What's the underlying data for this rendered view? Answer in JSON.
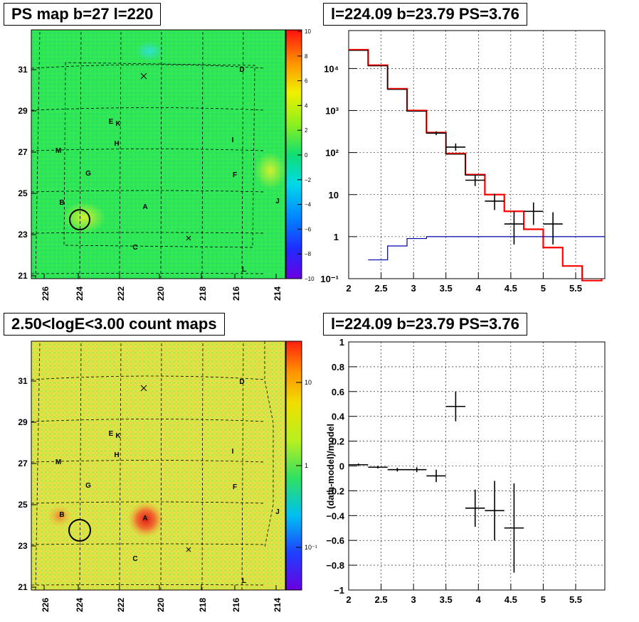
{
  "panels": {
    "tl_title": "PS map b=27 l=220",
    "tr_title": "l=224.09 b=23.79 PS=3.76",
    "bl_title": "2.50<logE<3.00 count maps",
    "br_title": "l=224.09 b=23.79 PS=3.76"
  },
  "maps": {
    "x_ticks": [
      "226",
      "224",
      "222",
      "220",
      "218",
      "216",
      "214"
    ],
    "y_ticks": [
      "31",
      "29",
      "27",
      "25",
      "23",
      "21"
    ],
    "sources": [
      {
        "label": "D"
      },
      {
        "label": "E"
      },
      {
        "label": "K"
      },
      {
        "label": "H"
      },
      {
        "label": "I"
      },
      {
        "label": "M"
      },
      {
        "label": "G"
      },
      {
        "label": "F"
      },
      {
        "label": "B"
      },
      {
        "label": "A"
      },
      {
        "label": "J"
      },
      {
        "label": "C"
      },
      {
        "label": "L"
      }
    ],
    "ps_colorbar_ticks": [
      "10",
      "8",
      "6",
      "4",
      "2",
      "0",
      "−2",
      "−4",
      "−6",
      "−8",
      "−10"
    ],
    "count_colorbar_ticks": [
      "10",
      "1",
      "10⁻¹"
    ],
    "colors": {
      "ps_bg": "#2fe65a",
      "count_bg": "#d8e84a",
      "hotspot": "#e8401e"
    }
  },
  "chart_data": [
    {
      "type": "line",
      "title": "l=224.09 b=23.79 PS=3.76",
      "xlim": [
        2,
        5.95
      ],
      "ylim": [
        0.1,
        80000
      ],
      "yscale": "log",
      "x_ticks": [
        "2",
        "2.5",
        "3",
        "3.5",
        "4",
        "4.5",
        "5",
        "5.5"
      ],
      "y_ticks": [
        "10⁻¹",
        "1",
        "10",
        "10²",
        "10³",
        "10⁴"
      ],
      "grid": true,
      "series": [
        {
          "color": "#ff0000",
          "kind": "step",
          "edges": [
            2.0,
            2.3,
            2.6,
            2.9,
            3.2,
            3.5,
            3.8,
            4.1,
            4.4,
            4.7,
            5.0,
            5.3,
            5.6,
            5.9
          ],
          "values": [
            28000,
            12000,
            3300,
            1000,
            300,
            95,
            30,
            10,
            4,
            1.5,
            0.55,
            0.2,
            0.09
          ]
        },
        {
          "color": "#0000aa",
          "kind": "step",
          "edges": [
            2.3,
            2.6,
            2.9,
            3.2,
            3.5,
            5.95
          ],
          "values": [
            0.28,
            0.6,
            0.9,
            1.0,
            1.0
          ]
        },
        {
          "color": "#000000",
          "kind": "points",
          "x": [
            3.35,
            3.65,
            3.95,
            4.25,
            4.55,
            4.85,
            5.15
          ],
          "xerr": [
            0.15,
            0.15,
            0.15,
            0.15,
            0.15,
            0.15,
            0.15
          ],
          "y": [
            290,
            135,
            22,
            7,
            2,
            4,
            2
          ],
          "ylo": [
            260,
            110,
            16,
            4.3,
            0.65,
            1.9,
            0.65
          ],
          "yhi": [
            320,
            165,
            29,
            10.5,
            4,
            6.5,
            3.8
          ]
        }
      ]
    },
    {
      "type": "scatter",
      "title": "l=224.09 b=23.79 PS=3.76",
      "ylabel": "(data-model)/model",
      "xlim": [
        2,
        5.95
      ],
      "ylim": [
        -1,
        1
      ],
      "x_ticks": [
        "2",
        "2.5",
        "3",
        "3.5",
        "4",
        "4.5",
        "5",
        "5.5"
      ],
      "y_ticks": [
        "1",
        "0.8",
        "0.6",
        "0.4",
        "0.2",
        "0",
        "−0.2",
        "−0.4",
        "−0.6",
        "−0.8",
        "−1"
      ],
      "grid": true,
      "points": {
        "x": [
          2.15,
          2.45,
          2.75,
          3.05,
          3.35,
          3.65,
          3.95,
          4.25,
          4.55
        ],
        "xerr": [
          0.15,
          0.15,
          0.15,
          0.15,
          0.15,
          0.15,
          0.15,
          0.15,
          0.15
        ],
        "y": [
          0.01,
          -0.01,
          -0.03,
          -0.03,
          -0.08,
          0.48,
          -0.34,
          -0.36,
          -0.5
        ],
        "yerr": [
          0.01,
          0.01,
          0.015,
          0.02,
          0.05,
          0.12,
          0.15,
          0.24,
          0.36
        ]
      }
    }
  ]
}
